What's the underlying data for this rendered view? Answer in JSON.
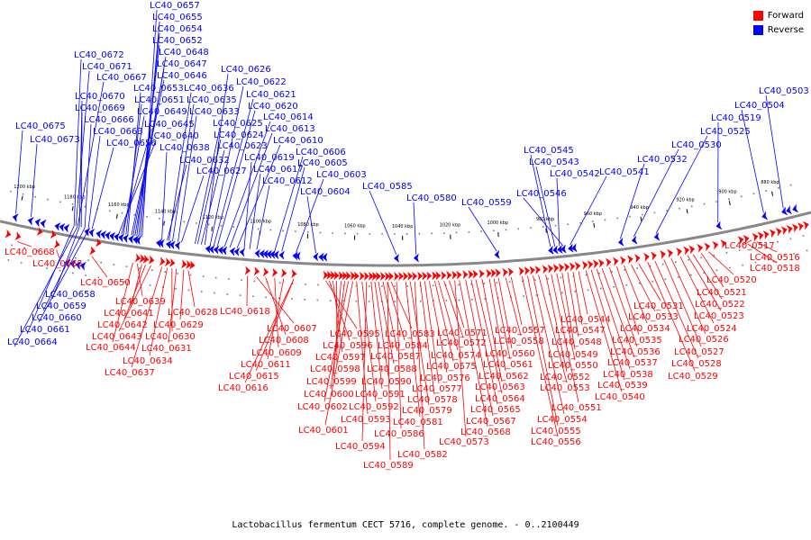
{
  "legend": [
    {
      "label": "Forward",
      "color": "#ff0000"
    },
    {
      "label": "Reverse",
      "color": "#0000ff"
    }
  ],
  "caption": "Lactobacillus fermentum CECT 5716, complete genome. - 0..2100449",
  "scale_ticks": [
    "1200 kbp",
    "1180 kbp",
    "1160 kbp",
    "1140 kbp",
    "1120 kbp",
    "1100 kbp",
    "1080 kbp",
    "1060 kbp",
    "1040 kbp",
    "1020 kbp",
    "1000 kbp",
    "980 kbp",
    "960 kbp",
    "940 kbp",
    "920 kbp",
    "900 kbp",
    "880 kbp"
  ],
  "reverse_genes": [
    "LC40_0657",
    "LC40_0655",
    "LC40_0654",
    "LC40_0652",
    "LC40_0648",
    "LC40_0647",
    "LC40_0646",
    "LC40_0653",
    "LC40_0651",
    "LC40_0649",
    "LC40_0645",
    "LC40_0640",
    "LC40_0638",
    "LC40_0636",
    "LC40_0635",
    "LC40_0633",
    "LC40_0632",
    "LC40_0627",
    "LC40_0626",
    "LC40_0622",
    "LC40_0621",
    "LC40_0620",
    "LC40_0625",
    "LC40_0624",
    "LC40_0623",
    "LC40_0614",
    "LC40_0613",
    "LC40_0610",
    "LC40_0619",
    "LC40_0617",
    "LC40_0612",
    "LC40_0606",
    "LC40_0605",
    "LC40_0603",
    "LC40_0604",
    "LC40_0672",
    "LC40_0671",
    "LC40_0667",
    "LC40_0670",
    "LC40_0669",
    "LC40_0666",
    "LC40_0663",
    "LC40_0656",
    "LC40_0675",
    "LC40_0673",
    "LC40_0585",
    "LC40_0580",
    "LC40_0559",
    "LC40_0545",
    "LC40_0543",
    "LC40_0542",
    "LC40_0541",
    "LC40_0546",
    "LC40_0532",
    "LC40_0530",
    "LC40_0525",
    "LC40_0519",
    "LC40_0504",
    "LC40_0503",
    "LC40_0658",
    "LC40_0659",
    "LC40_0660",
    "LC40_0661",
    "LC40_0664"
  ],
  "forward_genes": [
    "LC40_0668",
    "LC40_0665",
    "LC40_0650",
    "LC40_0639",
    "LC40_0641",
    "LC40_0642",
    "LC40_0643",
    "LC40_0644",
    "LC40_0637",
    "LC40_0634",
    "LC40_0630",
    "LC40_0631",
    "LC40_0629",
    "LC40_0628",
    "LC40_0618",
    "LC40_0607",
    "LC40_0608",
    "LC40_0609",
    "LC40_0611",
    "LC40_0615",
    "LC40_0616",
    "LC40_0595",
    "LC40_0596",
    "LC40_0597",
    "LC40_0598",
    "LC40_0599",
    "LC40_0600",
    "LC40_0602",
    "LC40_0601",
    "LC40_0593",
    "LC40_0592",
    "LC40_0594",
    "LC40_0591",
    "LC40_0590",
    "LC40_0588",
    "LC40_0587",
    "LC40_0584",
    "LC40_0583",
    "LC40_0586",
    "LC40_0589",
    "LC40_0582",
    "LC40_0581",
    "LC40_0579",
    "LC40_0578",
    "LC40_0577",
    "LC40_0576",
    "LC40_0575",
    "LC40_0574",
    "LC40_0572",
    "LC40_0571",
    "LC40_0573",
    "LC40_0568",
    "LC40_0567",
    "LC40_0565",
    "LC40_0564",
    "LC40_0563",
    "LC40_0562",
    "LC40_0561",
    "LC40_0560",
    "LC40_0558",
    "LC40_0557",
    "LC40_0556",
    "LC40_0555",
    "LC40_0554",
    "LC40_0553",
    "LC40_0552",
    "LC40_0551",
    "LC40_0550",
    "LC40_0549",
    "LC40_0548",
    "LC40_0547",
    "LC40_0544",
    "LC40_0540",
    "LC40_0539",
    "LC40_0538",
    "LC40_0537",
    "LC40_0536",
    "LC40_0535",
    "LC40_0534",
    "LC40_0533",
    "LC40_0531",
    "LC40_0529",
    "LC40_0528",
    "LC40_0527",
    "LC40_0526",
    "LC40_0524",
    "LC40_0523",
    "LC40_0522",
    "LC40_0521",
    "LC40_0520",
    "LC40_0518",
    "LC40_0516",
    "LC40_0517"
  ]
}
